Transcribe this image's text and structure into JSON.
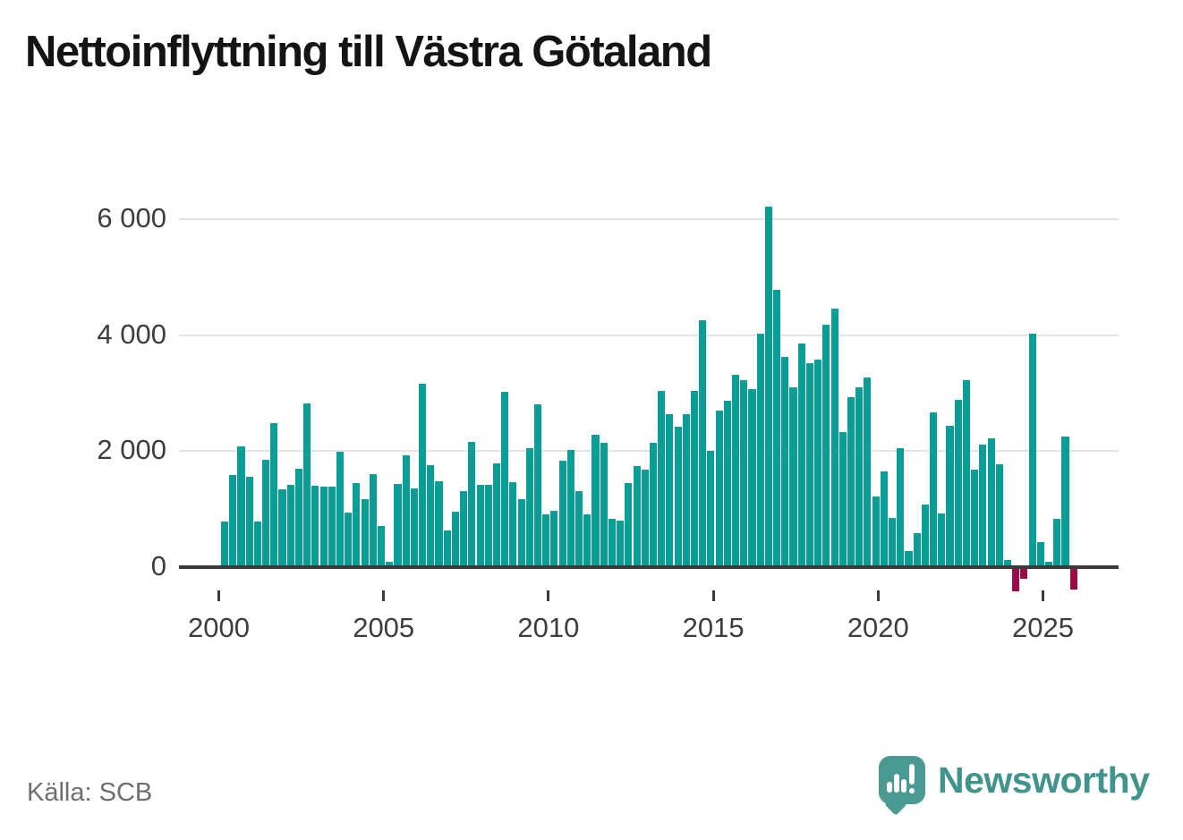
{
  "title": "Nettoinflyttning till Västra Götaland",
  "source": {
    "text": "Källa: SCB"
  },
  "brand": {
    "name": "Newsworthy",
    "icon": "speech-bubble-bar-chart-exclamation-icon",
    "color": "#4a9a92"
  },
  "colors": {
    "positive_bar": "#0b9e96",
    "negative_bar": "#9b0c47",
    "axis_line": "#3b3b3b",
    "gridline": "#e4e4e4",
    "tick_text": "#3d3d3d",
    "title_text": "#141414",
    "source_text": "#6f6f6f",
    "background": "#ffffff"
  },
  "chart_data": {
    "type": "bar",
    "title": "Nettoinflyttning till Västra Götaland",
    "xlabel": "",
    "ylabel": "",
    "frequency": "quarterly",
    "start_period": "2000-Q1",
    "end_period": "2025-Q4",
    "ylim": [
      -500,
      6500
    ],
    "grid": "horizontal",
    "legend": "none",
    "y_ticks": [
      {
        "v": 0,
        "label": "0"
      },
      {
        "v": 2000,
        "label": "2 000"
      },
      {
        "v": 4000,
        "label": "4 000"
      },
      {
        "v": 6000,
        "label": "6 000"
      }
    ],
    "x_ticks": [
      {
        "year": 2000,
        "label": "2000"
      },
      {
        "year": 2005,
        "label": "2005"
      },
      {
        "year": 2010,
        "label": "2010"
      },
      {
        "year": 2015,
        "label": "2015"
      },
      {
        "year": 2020,
        "label": "2020"
      },
      {
        "year": 2025,
        "label": "2025"
      }
    ],
    "values": [
      780,
      1580,
      2080,
      1555,
      785,
      1845,
      2480,
      1330,
      1410,
      1685,
      2820,
      1400,
      1380,
      1380,
      1990,
      940,
      1445,
      1160,
      1605,
      700,
      90,
      1430,
      1930,
      1350,
      3160,
      1750,
      1480,
      630,
      950,
      1300,
      2160,
      1420,
      1420,
      1780,
      3020,
      1460,
      1160,
      2040,
      2800,
      900,
      965,
      1825,
      2015,
      1300,
      910,
      2280,
      2140,
      825,
      790,
      1445,
      1745,
      1680,
      2140,
      3030,
      2640,
      2410,
      2630,
      3040,
      4250,
      2000,
      2700,
      2870,
      3310,
      3220,
      3060,
      4030,
      6220,
      4780,
      3620,
      3100,
      3850,
      3520,
      3580,
      4170,
      4450,
      2330,
      2930,
      3090,
      3270,
      1220,
      1650,
      840,
      2040,
      270,
      575,
      1075,
      2670,
      915,
      2430,
      2875,
      3215,
      1670,
      2115,
      2210,
      1765,
      120,
      -400,
      -190,
      4025,
      430,
      90,
      820,
      2250,
      -370
    ]
  }
}
